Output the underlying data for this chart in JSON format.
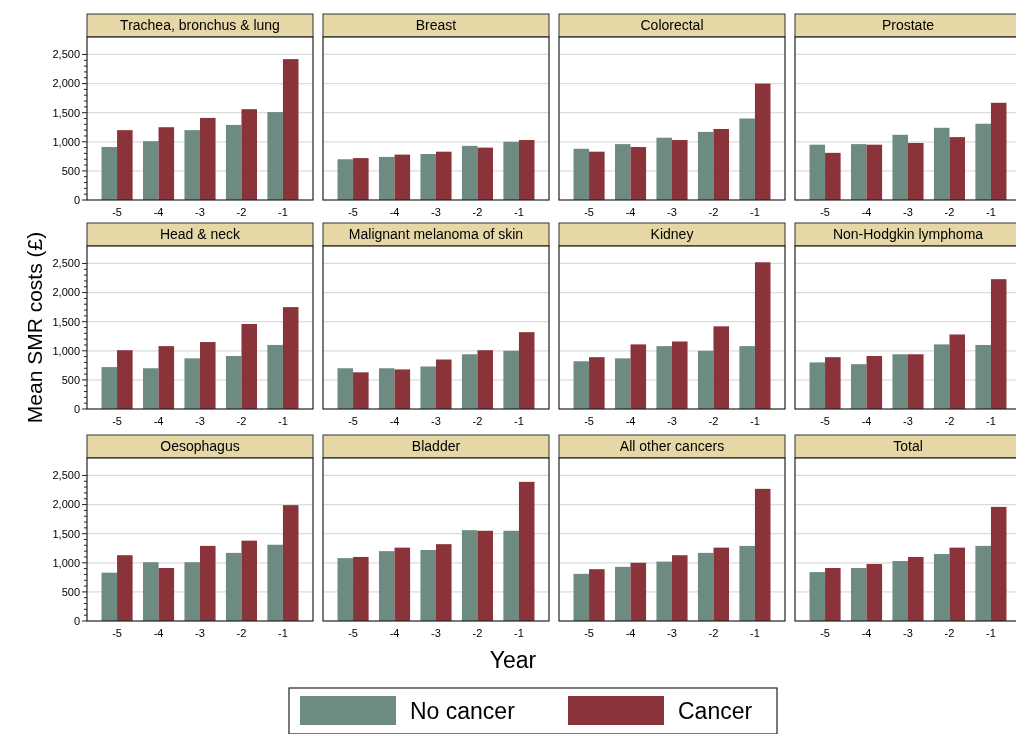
{
  "chart_data": [
    {
      "type": "bar",
      "title": "Trachea, bronchus & lung",
      "categories": [
        "-5",
        "-4",
        "-3",
        "-2",
        "-1"
      ],
      "series": [
        {
          "name": "No cancer",
          "color": "#6d8b80",
          "values": [
            910,
            1010,
            1200,
            1290,
            1510
          ]
        },
        {
          "name": "Cancer",
          "color": "#8b333b",
          "values": [
            1200,
            1250,
            1410,
            1560,
            2420
          ]
        }
      ],
      "ylim": [
        0,
        2800
      ],
      "yticks": [
        0,
        {
          "value": 100,
          "label": null
        },
        {
          "value": 200,
          "label": null
        },
        {
          "value": 300,
          "label": null
        },
        {
          "value": 400,
          "label": null
        },
        {
          "value": 500,
          "label": "500"
        },
        {
          "value": 600,
          "label": null
        },
        {
          "value": 700,
          "label": null
        },
        {
          "value": 800,
          "label": null
        },
        {
          "value": 900,
          "label": null
        },
        {
          "value": 1000,
          "label": "1,000"
        },
        {
          "value": 1100,
          "label": null
        },
        {
          "value": 1200,
          "label": null
        },
        {
          "value": 1300,
          "label": null
        },
        {
          "value": 1400,
          "label": null
        },
        {
          "value": 1500,
          "label": "1,500"
        },
        {
          "value": 1600,
          "label": null
        },
        {
          "value": 1700,
          "label": null
        },
        {
          "value": 1800,
          "label": null
        },
        {
          "value": 1900,
          "label": null
        },
        {
          "value": 2000,
          "label": "2,000"
        },
        {
          "value": 2100,
          "label": null
        },
        {
          "value": 2200,
          "label": null
        },
        {
          "value": 2300,
          "label": null
        },
        {
          "value": 2400,
          "label": null
        },
        {
          "value": 2500,
          "label": "2,500"
        }
      ],
      "grid": "y",
      "legend": "bottom"
    },
    {
      "type": "bar",
      "title": "Breast",
      "categories": [
        "-5",
        "-4",
        "-3",
        "-2",
        "-1"
      ],
      "series": [
        {
          "color": "#6d8b80",
          "values": [
            700,
            740,
            790,
            930,
            1000
          ]
        },
        {
          "color": "#8b333b",
          "values": [
            720,
            780,
            830,
            900,
            1030
          ]
        }
      ],
      "ylim": [
        0,
        2800
      ],
      "yticks": [
        0,
        500,
        1000,
        1500,
        2000,
        2500
      ],
      "grid": "y",
      "tick_labels": "x"
    },
    {
      "type": "bar",
      "title": "Colorectal",
      "categories": [
        "-5",
        "-4",
        "-3",
        "-2",
        "-1"
      ],
      "series": [
        {
          "color": "#6d8b80",
          "values": [
            880,
            960,
            1070,
            1170,
            1400
          ]
        },
        {
          "color": "#8b333b",
          "values": [
            830,
            910,
            1030,
            1220,
            2000
          ]
        }
      ],
      "ylim": [
        0,
        2800
      ],
      "yticks": [
        0,
        500,
        1000,
        1500,
        2000,
        2500
      ],
      "grid": "y",
      "tick_labels": "x"
    },
    {
      "type": "bar",
      "title": "Prostate",
      "categories": [
        "-5",
        "-4",
        "-3",
        "-2",
        "-1"
      ],
      "series": [
        {
          "color": "#6d8b80",
          "values": [
            950,
            960,
            1120,
            1240,
            1310
          ]
        },
        {
          "color": "#8b333b",
          "values": [
            810,
            950,
            980,
            1080,
            1670
          ]
        }
      ],
      "ylim": [
        0,
        2800
      ],
      "yticks": [
        0,
        500,
        1000,
        1500,
        2000,
        2500
      ],
      "grid": "y",
      "tick_labels": "x"
    },
    {
      "type": "bar",
      "title": "Head & neck",
      "ylabel": "Mean SMR costs (£)",
      "categories": [
        "-5",
        "-4",
        "-3",
        "-2",
        "-1"
      ],
      "series": [
        {
          "color": "#6d8b80",
          "values": [
            720,
            700,
            870,
            910,
            1100
          ]
        },
        {
          "color": "#8b333b",
          "values": [
            1010,
            1080,
            1150,
            1460,
            1750
          ]
        }
      ],
      "ylim": [
        0,
        2800
      ],
      "yticks": [
        0,
        {
          "value": 100,
          "label": null
        },
        {
          "value": 200,
          "label": null
        },
        {
          "value": 300,
          "label": null
        },
        {
          "value": 400,
          "label": null
        },
        {
          "value": 500,
          "label": "500"
        },
        {
          "value": 600,
          "label": null
        },
        {
          "value": 700,
          "label": null
        },
        {
          "value": 800,
          "label": null
        },
        {
          "value": 900,
          "label": null
        },
        {
          "value": 1000,
          "label": "1,000"
        },
        {
          "value": 1100,
          "label": null
        },
        {
          "value": 1200,
          "label": null
        },
        {
          "value": 1300,
          "label": null
        },
        {
          "value": 1400,
          "label": null
        },
        {
          "value": 1500,
          "label": "1,500"
        },
        {
          "value": 1600,
          "label": null
        },
        {
          "value": 1700,
          "label": null
        },
        {
          "value": 1800,
          "label": null
        },
        {
          "value": 1900,
          "label": null
        },
        {
          "value": 2000,
          "label": "2,000"
        },
        {
          "value": 2100,
          "label": null
        },
        {
          "value": 2200,
          "label": null
        },
        {
          "value": 2300,
          "label": null
        },
        {
          "value": 2400,
          "label": null
        },
        {
          "value": 2500,
          "label": "2,500"
        }
      ],
      "grid": "y"
    },
    {
      "type": "bar",
      "title": "Malignant melanoma of skin",
      "categories": [
        "-5",
        "-4",
        "-3",
        "-2",
        "-1"
      ],
      "series": [
        {
          "color": "#6d8b80",
          "values": [
            700,
            700,
            730,
            940,
            1000
          ]
        },
        {
          "color": "#8b333b",
          "values": [
            630,
            680,
            850,
            1010,
            1320
          ]
        }
      ],
      "ylim": [
        0,
        2800
      ],
      "yticks": [
        0,
        500,
        1000,
        1500,
        2000,
        2500
      ],
      "grid": "y",
      "tick_labels": "x"
    },
    {
      "type": "bar",
      "title": "Kidney",
      "categories": [
        "-5",
        "-4",
        "-3",
        "-2",
        "-1"
      ],
      "series": [
        {
          "color": "#6d8b80",
          "values": [
            820,
            870,
            1080,
            1000,
            1080
          ]
        },
        {
          "color": "#8b333b",
          "values": [
            890,
            1110,
            1160,
            1420,
            2520
          ]
        }
      ],
      "ylim": [
        0,
        2800
      ],
      "yticks": [
        0,
        500,
        1000,
        1500,
        2000,
        2500
      ],
      "grid": "y",
      "tick_labels": "x"
    },
    {
      "type": "bar",
      "title": "Non-Hodgkin lymphoma",
      "categories": [
        "-5",
        "-4",
        "-3",
        "-2",
        "-1"
      ],
      "series": [
        {
          "color": "#6d8b80",
          "values": [
            800,
            770,
            940,
            1110,
            1100
          ]
        },
        {
          "color": "#8b333b",
          "values": [
            890,
            910,
            940,
            1280,
            2230
          ]
        }
      ],
      "ylim": [
        0,
        2800
      ],
      "yticks": [
        0,
        500,
        1000,
        1500,
        2000,
        2500
      ],
      "grid": "y",
      "tick_labels": "x"
    },
    {
      "type": "bar",
      "title": "Oesophagus",
      "categories": [
        "-5",
        "-4",
        "-3",
        "-2",
        "-1"
      ],
      "series": [
        {
          "color": "#6d8b80",
          "values": [
            830,
            1010,
            1010,
            1170,
            1310
          ]
        },
        {
          "color": "#8b333b",
          "values": [
            1130,
            910,
            1290,
            1380,
            1990
          ]
        }
      ],
      "ylim": [
        0,
        2800
      ],
      "yticks": [
        0,
        {
          "value": 100,
          "label": null
        },
        {
          "value": 200,
          "label": null
        },
        {
          "value": 300,
          "label": null
        },
        {
          "value": 400,
          "label": null
        },
        {
          "value": 500,
          "label": "500"
        },
        {
          "value": 600,
          "label": null
        },
        {
          "value": 700,
          "label": null
        },
        {
          "value": 800,
          "label": null
        },
        {
          "value": 900,
          "label": null
        },
        {
          "value": 1000,
          "label": "1,000"
        },
        {
          "value": 1100,
          "label": null
        },
        {
          "value": 1200,
          "label": null
        },
        {
          "value": 1300,
          "label": null
        },
        {
          "value": 1400,
          "label": null
        },
        {
          "value": 1500,
          "label": "1,500"
        },
        {
          "value": 1600,
          "label": null
        },
        {
          "value": 1700,
          "label": null
        },
        {
          "value": 1800,
          "label": null
        },
        {
          "value": 1900,
          "label": null
        },
        {
          "value": 2000,
          "label": "2,000"
        },
        {
          "value": 2100,
          "label": null
        },
        {
          "value": 2200,
          "label": null
        },
        {
          "value": 2300,
          "label": null
        },
        {
          "value": 2400,
          "label": null
        },
        {
          "value": 2500,
          "label": "2,500"
        }
      ],
      "grid": "y"
    },
    {
      "type": "bar",
      "title": "Bladder",
      "xlabel": "Year",
      "categories": [
        "-5",
        "-4",
        "-3",
        "-2",
        "-1"
      ],
      "series": [
        {
          "color": "#6d8b80",
          "values": [
            1080,
            1200,
            1220,
            1560,
            1550
          ]
        },
        {
          "color": "#8b333b",
          "values": [
            1100,
            1260,
            1320,
            1550,
            2390
          ]
        }
      ],
      "ylim": [
        0,
        2800
      ],
      "yticks": [
        0,
        500,
        1000,
        1500,
        2000,
        2500
      ],
      "grid": "y",
      "tick_labels": "x"
    },
    {
      "type": "bar",
      "title": "All other cancers",
      "categories": [
        "-5",
        "-4",
        "-3",
        "-2",
        "-1"
      ],
      "series": [
        {
          "color": "#6d8b80",
          "values": [
            810,
            930,
            1020,
            1170,
            1290
          ]
        },
        {
          "color": "#8b333b",
          "values": [
            890,
            1000,
            1130,
            1260,
            2270
          ]
        }
      ],
      "ylim": [
        0,
        2800
      ],
      "yticks": [
        0,
        500,
        1000,
        1500,
        2000,
        2500
      ],
      "grid": "y",
      "tick_labels": "x"
    },
    {
      "type": "bar",
      "title": "Total",
      "categories": [
        "-5",
        "-4",
        "-3",
        "-2",
        "-1"
      ],
      "series": [
        {
          "color": "#6d8b80",
          "values": [
            840,
            910,
            1030,
            1150,
            1290
          ]
        },
        {
          "color": "#8b333b",
          "values": [
            910,
            980,
            1100,
            1260,
            1960
          ]
        }
      ],
      "ylim": [
        0,
        2800
      ],
      "yticks": [
        0,
        500,
        1000,
        1500,
        2000,
        2500
      ],
      "grid": "y",
      "tick_labels": "x"
    }
  ]
}
